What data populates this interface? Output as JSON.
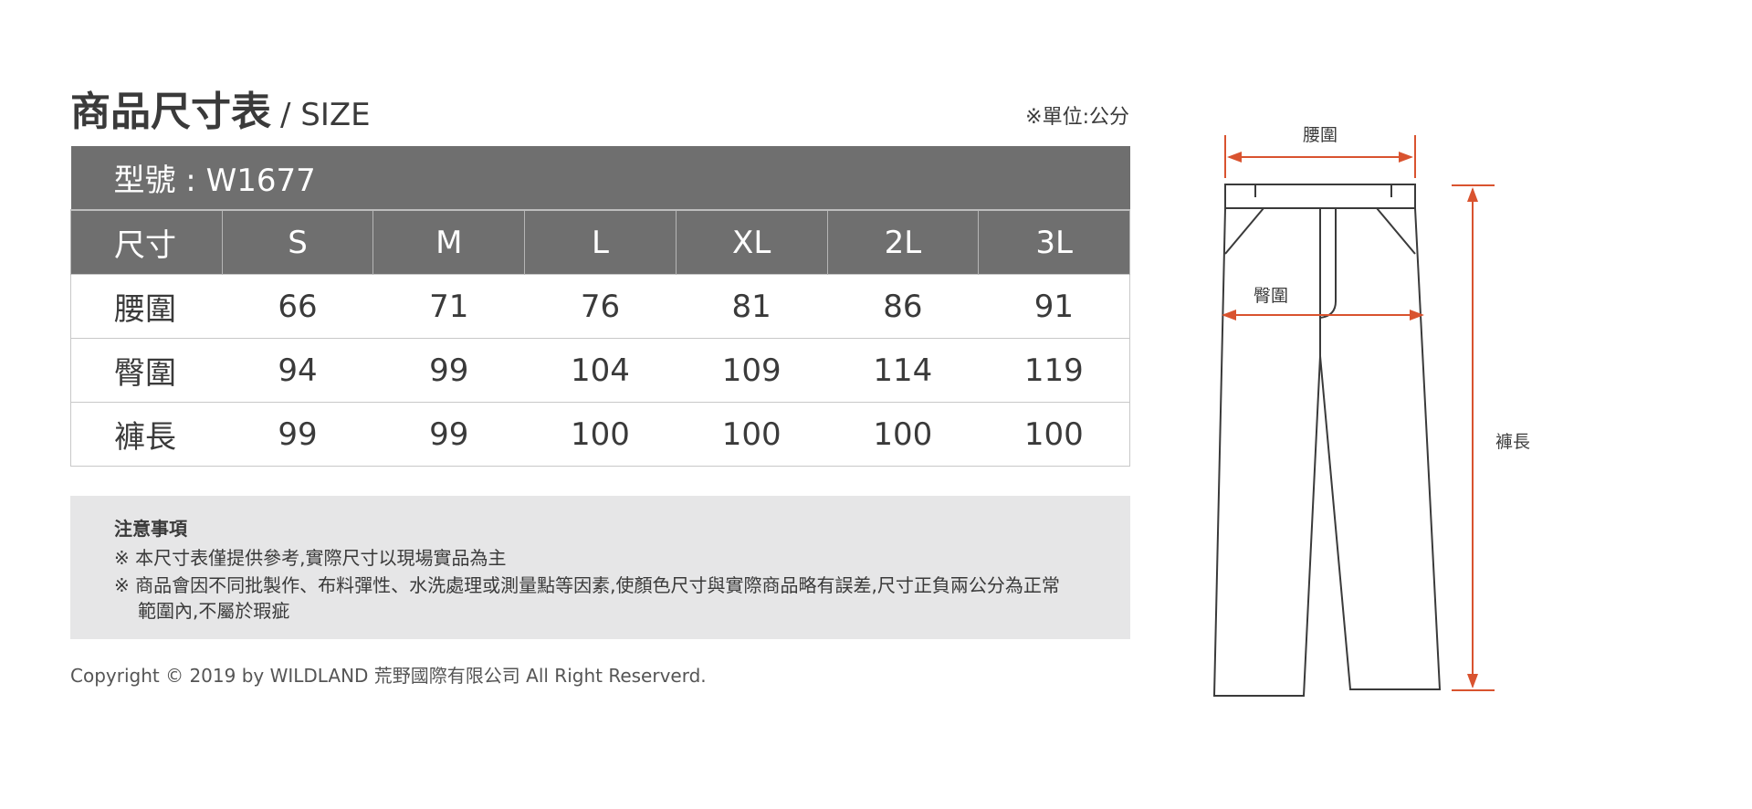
{
  "header": {
    "title": "商品尺寸表",
    "subtitle": "/ SIZE",
    "unit_note": "※單位:公分"
  },
  "table": {
    "model_label": "型號 : W1677",
    "columns": [
      "尺寸",
      "S",
      "M",
      "L",
      "XL",
      "2L",
      "3L"
    ],
    "rows": [
      {
        "label": "腰圍",
        "values": [
          "66",
          "71",
          "76",
          "81",
          "86",
          "91"
        ]
      },
      {
        "label": "臀圍",
        "values": [
          "94",
          "99",
          "104",
          "109",
          "114",
          "119"
        ]
      },
      {
        "label": "褲長",
        "values": [
          "99",
          "99",
          "100",
          "100",
          "100",
          "100"
        ]
      }
    ]
  },
  "notes": {
    "heading": "注意事項",
    "items": [
      "※ 本尺寸表僅提供參考,實際尺寸以現場實品為主",
      "※ 商品會因不同批製作、布料彈性、水洗處理或測量點等因素,使顏色尺寸與實際商品略有誤差,尺寸正負兩公分為正常",
      "範圍內,不屬於瑕疵"
    ]
  },
  "footer": {
    "copyright": "Copyright © 2019 by WILDLAND 荒野國際有限公司 All Right Reserverd."
  },
  "diagram": {
    "waist_label": "腰圍",
    "hip_label": "臀圍",
    "length_label": "褲長"
  },
  "colors": {
    "header_bg": "#6f6f6f",
    "notes_bg": "#e6e6e7",
    "measure_line": "#d9532f"
  }
}
